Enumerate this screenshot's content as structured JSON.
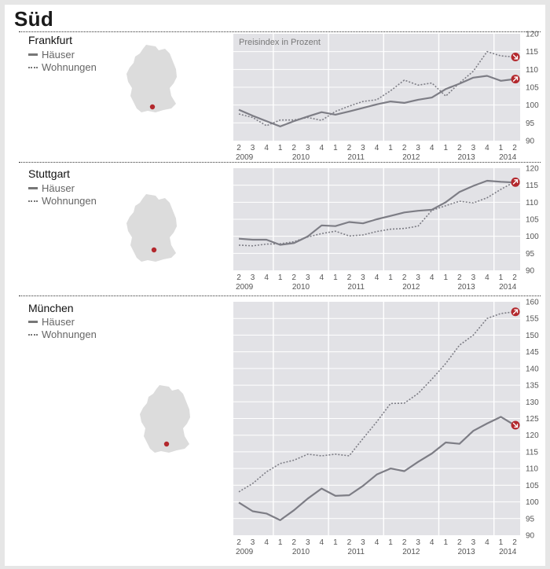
{
  "region": "Süd",
  "colors": {
    "plot_bg": "#e2e2e6",
    "line": "#7d7d85",
    "marker": "#b3282d",
    "map_fill": "#dcdcdc",
    "city_dot": "#b3282d"
  },
  "icons": [
    "germany-map-icon",
    "arrow-marker-icon"
  ],
  "chart_data": [
    {
      "type": "line",
      "city": "Frankfurt",
      "subtitle": "Preisindex in Prozent",
      "ylim": [
        90,
        120
      ],
      "yticks": [
        90,
        95,
        100,
        105,
        110,
        115,
        120
      ],
      "quarter_labels": [
        "2",
        "3",
        "4",
        "1",
        "2",
        "3",
        "4",
        "1",
        "2",
        "3",
        "4",
        "1",
        "2",
        "3",
        "4",
        "1",
        "2",
        "3",
        "4",
        "1",
        "2"
      ],
      "year_labels": [
        "2009",
        "2010",
        "2011",
        "2012",
        "2013",
        "2014"
      ],
      "legend": [
        "Häuser",
        "Wohnungen"
      ],
      "series": [
        {
          "name": "Häuser",
          "style": "solid",
          "values": [
            98.7,
            97.0,
            95.5,
            94.0,
            95.5,
            96.8,
            98.0,
            97.3,
            98.2,
            99.2,
            100.2,
            101.0,
            100.6,
            101.5,
            102.1,
            104.5,
            106.0,
            107.7,
            108.2,
            106.8,
            107.3
          ]
        },
        {
          "name": "Wohnungen",
          "style": "dotted",
          "values": [
            97.5,
            96.5,
            94.2,
            95.8,
            95.8,
            96.5,
            95.7,
            98.2,
            99.7,
            101.0,
            101.5,
            104.0,
            107.0,
            105.6,
            106.2,
            102.5,
            106.2,
            109.5,
            115.0,
            113.8,
            113.5
          ]
        }
      ]
    },
    {
      "type": "line",
      "city": "Stuttgart",
      "ylim": [
        90,
        120
      ],
      "yticks": [
        90,
        95,
        100,
        105,
        110,
        115,
        120
      ],
      "quarter_labels": [
        "2",
        "3",
        "4",
        "1",
        "2",
        "3",
        "4",
        "1",
        "2",
        "3",
        "4",
        "1",
        "2",
        "3",
        "4",
        "1",
        "2",
        "3",
        "4",
        "1",
        "2"
      ],
      "year_labels": [
        "2009",
        "2010",
        "2011",
        "2012",
        "2013",
        "2014"
      ],
      "legend": [
        "Häuser",
        "Wohnungen"
      ],
      "series": [
        {
          "name": "Häuser",
          "style": "solid",
          "values": [
            99.3,
            99.0,
            99.0,
            97.5,
            98.0,
            100.0,
            103.2,
            103.0,
            104.2,
            103.8,
            105.0,
            106.0,
            107.0,
            107.5,
            107.8,
            110.0,
            113.0,
            114.8,
            116.3,
            116.0,
            115.8
          ]
        },
        {
          "name": "Wohnungen",
          "style": "dotted",
          "values": [
            97.4,
            97.2,
            97.7,
            97.8,
            98.4,
            99.8,
            100.8,
            101.5,
            100.1,
            100.4,
            101.4,
            102.1,
            102.3,
            103.0,
            107.6,
            109.0,
            110.3,
            109.8,
            111.3,
            113.8,
            116.0
          ]
        }
      ]
    },
    {
      "type": "line",
      "city": "München",
      "ylim": [
        90,
        160
      ],
      "yticks": [
        90,
        95,
        100,
        105,
        110,
        115,
        120,
        125,
        130,
        135,
        140,
        145,
        150,
        155,
        160
      ],
      "quarter_labels": [
        "2",
        "3",
        "4",
        "1",
        "2",
        "3",
        "4",
        "1",
        "2",
        "3",
        "4",
        "1",
        "2",
        "3",
        "4",
        "1",
        "2",
        "3",
        "4",
        "1",
        "2"
      ],
      "year_labels": [
        "2009",
        "2010",
        "2011",
        "2012",
        "2013",
        "2014"
      ],
      "legend": [
        "Häuser",
        "Wohnungen"
      ],
      "series": [
        {
          "name": "Häuser",
          "style": "solid",
          "values": [
            99.8,
            97.2,
            96.5,
            94.5,
            97.5,
            101.0,
            104.0,
            101.8,
            102.0,
            104.8,
            108.2,
            110.0,
            109.2,
            112.0,
            114.5,
            117.8,
            117.4,
            121.3,
            123.5,
            125.5,
            123.0
          ]
        },
        {
          "name": "Wohnungen",
          "style": "dotted",
          "values": [
            103.0,
            105.5,
            109.0,
            111.5,
            112.5,
            114.3,
            113.8,
            114.3,
            113.8,
            119.0,
            124.0,
            129.5,
            129.6,
            132.5,
            136.8,
            141.5,
            147.0,
            150.0,
            155.0,
            156.5,
            157.0
          ]
        }
      ]
    }
  ]
}
